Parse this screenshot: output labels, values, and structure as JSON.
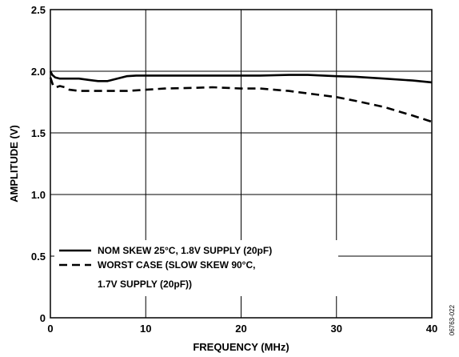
{
  "chart_data": {
    "type": "line",
    "xlabel": "FREQUENCY (MHz)",
    "ylabel": "AMPLITUDE (V)",
    "xlim": [
      0,
      40
    ],
    "ylim": [
      0,
      2.5
    ],
    "x_ticks": [
      0,
      10,
      20,
      30,
      40
    ],
    "x_tick_labels": [
      "0",
      "10",
      "20",
      "30",
      "40"
    ],
    "y_ticks": [
      0,
      0.5,
      1.0,
      1.5,
      2.0,
      2.5
    ],
    "y_tick_labels": [
      "0",
      "0.5",
      "1.0",
      "1.5",
      "2.0",
      "2.5"
    ],
    "grid": true,
    "legend_position": "bottom-left",
    "figure_id": "06763-022",
    "series": [
      {
        "name": "NOM SKEW 25°C, 1.8V SUPPLY (20pF)",
        "line_style": "solid",
        "color": "#000000",
        "x": [
          0,
          0.2,
          0.5,
          1,
          2,
          3,
          4,
          5,
          5.5,
          6,
          7,
          8,
          9,
          10,
          12,
          15,
          18,
          20,
          22,
          25,
          27,
          30,
          32,
          35,
          38,
          40
        ],
        "y": [
          2.0,
          1.97,
          1.95,
          1.94,
          1.94,
          1.94,
          1.93,
          1.92,
          1.92,
          1.92,
          1.94,
          1.96,
          1.965,
          1.965,
          1.965,
          1.965,
          1.965,
          1.965,
          1.965,
          1.97,
          1.97,
          1.96,
          1.955,
          1.94,
          1.925,
          1.91
        ]
      },
      {
        "name": "WORST CASE (SLOW SKEW 90°C, 1.7V SUPPLY (20pF))",
        "line_style": "dashed",
        "color": "#000000",
        "x": [
          0,
          0.3,
          0.6,
          1,
          1.5,
          2,
          3,
          5,
          8,
          10,
          12,
          15,
          17,
          20,
          22,
          25,
          27,
          30,
          32,
          35,
          38,
          40
        ],
        "y": [
          1.95,
          1.88,
          1.87,
          1.88,
          1.87,
          1.85,
          1.84,
          1.84,
          1.84,
          1.85,
          1.86,
          1.865,
          1.87,
          1.86,
          1.86,
          1.84,
          1.82,
          1.79,
          1.76,
          1.71,
          1.64,
          1.59
        ]
      }
    ],
    "legend": {
      "entries": [
        {
          "style": "solid",
          "lines": [
            "NOM SKEW 25°C, 1.8V SUPPLY (20pF)"
          ]
        },
        {
          "style": "dashed",
          "lines": [
            "WORST CASE (SLOW SKEW 90°C,",
            "1.7V SUPPLY (20pF))"
          ]
        }
      ]
    }
  }
}
